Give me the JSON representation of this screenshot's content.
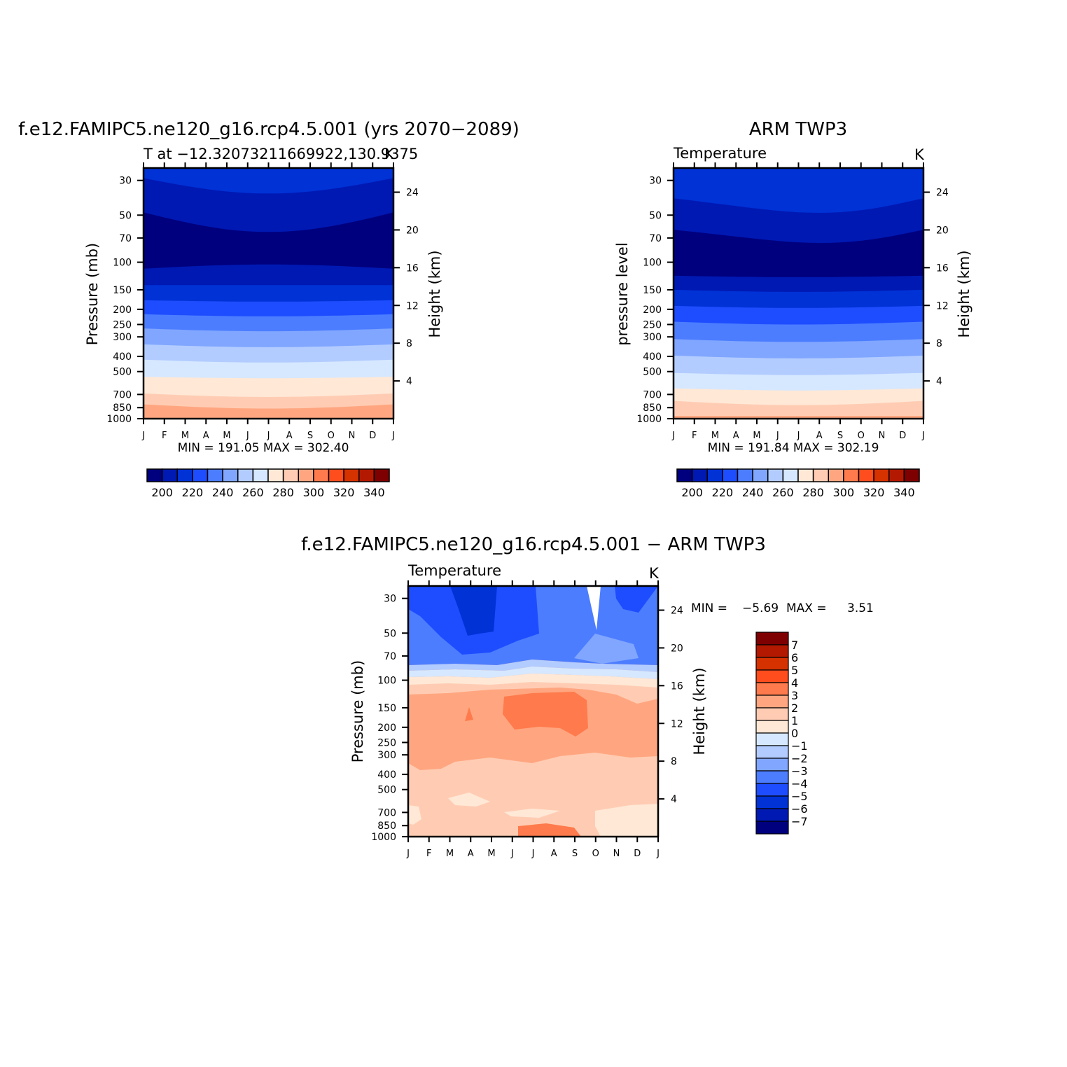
{
  "chart_data": [
    {
      "type": "heatmap",
      "title": "f.e12.FAMIPC5.ne120_g16.rcp4.5.001 (yrs 2070−2089)",
      "subtitle": "T at −12.32073211669922,130.9375",
      "units": "K",
      "ylabel": "Pressure (mb)",
      "ylabel_right": "Height (km)",
      "x_categories": [
        "J",
        "F",
        "M",
        "A",
        "M",
        "J",
        "J",
        "A",
        "S",
        "O",
        "N",
        "D",
        "J"
      ],
      "y_ticks": [
        "30",
        "50",
        "70",
        "100",
        "150",
        "200",
        "250",
        "300",
        "400",
        "500",
        "700",
        "850",
        "1000"
      ],
      "y_right_ticks": [
        "24",
        "20",
        "16",
        "12",
        "8",
        "4"
      ],
      "stats": "MIN = 191.05 MAX = 302.40",
      "colorbar_labels": [
        "200",
        "220",
        "240",
        "260",
        "280",
        "300",
        "320",
        "340"
      ],
      "colorbar_colors": [
        "#00007f",
        "#0019b3",
        "#0032d6",
        "#1e4dff",
        "#4c7dff",
        "#80a6ff",
        "#b3ccff",
        "#d6e8ff",
        "#ffe8d6",
        "#ffccb3",
        "#ffa680",
        "#ff7a4c",
        "#ff4d1e",
        "#d63200",
        "#b31900",
        "#7f0000"
      ],
      "bands": [
        {
          "color": "#0032d6",
          "level": 1
        },
        {
          "color": "#0019b3",
          "level": 2
        },
        {
          "color": "#00007f",
          "level": 3
        },
        {
          "color": "#0019b3",
          "level": 4
        },
        {
          "color": "#0032d6",
          "level": 5
        },
        {
          "color": "#1e4dff",
          "level": 6
        },
        {
          "color": "#4c7dff",
          "level": 7
        },
        {
          "color": "#80a6ff",
          "level": 8
        },
        {
          "color": "#b3ccff",
          "level": 9
        },
        {
          "color": "#d6e8ff",
          "level": 10
        },
        {
          "color": "#ffe8d6",
          "level": 11
        },
        {
          "color": "#ffccb3",
          "level": 12
        },
        {
          "color": "#ffa680",
          "level": 13
        }
      ]
    },
    {
      "type": "heatmap",
      "title": "ARM TWP3",
      "subtitle": "Temperature",
      "units": "K",
      "ylabel": "pressure level",
      "ylabel_right": "Height (km)",
      "x_categories": [
        "J",
        "F",
        "M",
        "A",
        "M",
        "J",
        "J",
        "A",
        "S",
        "O",
        "N",
        "D",
        "J"
      ],
      "y_ticks": [
        "30",
        "50",
        "70",
        "100",
        "150",
        "200",
        "250",
        "300",
        "400",
        "500",
        "700",
        "850",
        "1000"
      ],
      "y_right_ticks": [
        "24",
        "20",
        "16",
        "12",
        "8",
        "4"
      ],
      "stats": "MIN = 191.84 MAX = 302.19",
      "colorbar_labels": [
        "200",
        "220",
        "240",
        "260",
        "280",
        "300",
        "320",
        "340"
      ],
      "colorbar_colors": [
        "#00007f",
        "#0019b3",
        "#0032d6",
        "#1e4dff",
        "#4c7dff",
        "#80a6ff",
        "#b3ccff",
        "#d6e8ff",
        "#ffe8d6",
        "#ffccb3",
        "#ffa680",
        "#ff7a4c",
        "#ff4d1e",
        "#d63200",
        "#b31900",
        "#7f0000"
      ]
    },
    {
      "type": "heatmap",
      "title": "f.e12.FAMIPC5.ne120_g16.rcp4.5.001 − ARM TWP3",
      "subtitle": "Temperature",
      "units": "K",
      "ylabel": "Pressure (mb)",
      "ylabel_right": "Height (km)",
      "x_categories": [
        "J",
        "F",
        "M",
        "A",
        "M",
        "J",
        "J",
        "A",
        "S",
        "O",
        "N",
        "D",
        "J"
      ],
      "y_ticks": [
        "30",
        "50",
        "70",
        "100",
        "150",
        "200",
        "250",
        "300",
        "400",
        "500",
        "700",
        "850",
        "1000"
      ],
      "y_right_ticks": [
        "24",
        "20",
        "16",
        "12",
        "8",
        "4"
      ],
      "stats_min_label": "MIN =",
      "stats_min": "−5.69",
      "stats_max_label": "MAX =",
      "stats_max": "3.51",
      "colorbar_labels": [
        "7",
        "6",
        "5",
        "4",
        "3",
        "2",
        "1",
        "0",
        "−1",
        "−2",
        "−3",
        "−4",
        "−5",
        "−6",
        "−7"
      ],
      "colorbar_colors": [
        "#7f0000",
        "#b31900",
        "#d63200",
        "#ff4d1e",
        "#ff7a4c",
        "#ffa680",
        "#ffccb3",
        "#ffe8d6",
        "#d6e8ff",
        "#b3ccff",
        "#80a6ff",
        "#4c7dff",
        "#1e4dff",
        "#0032d6",
        "#0019b3",
        "#00007f"
      ]
    }
  ]
}
